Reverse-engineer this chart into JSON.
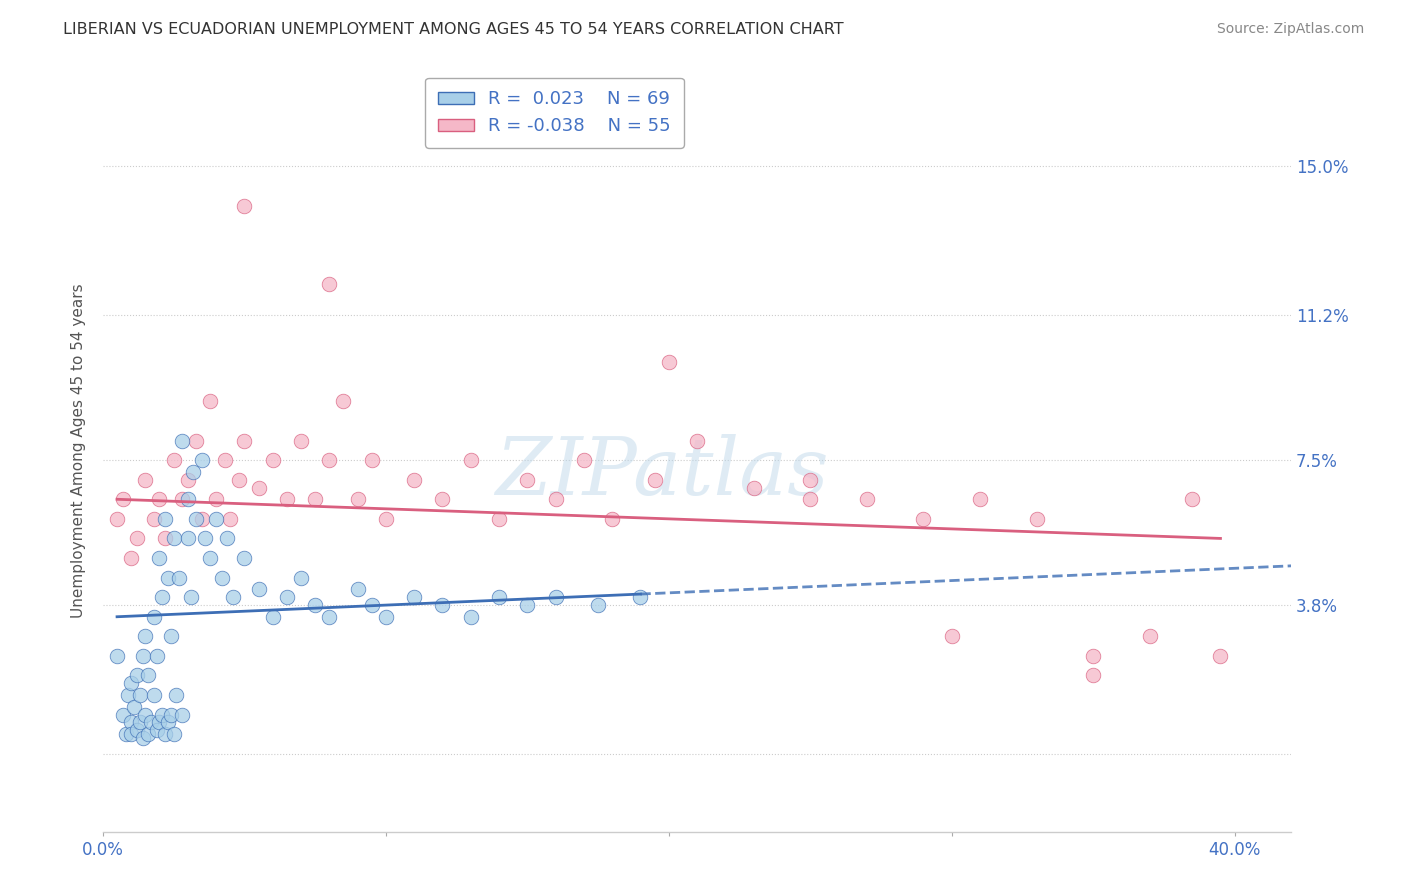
{
  "title": "LIBERIAN VS ECUADORIAN UNEMPLOYMENT AMONG AGES 45 TO 54 YEARS CORRELATION CHART",
  "source": "Source: ZipAtlas.com",
  "ylabel": "Unemployment Among Ages 45 to 54 years",
  "xlim": [
    0.0,
    0.42
  ],
  "ylim": [
    -0.02,
    0.175
  ],
  "ytick_values": [
    0.0,
    0.038,
    0.075,
    0.112,
    0.15
  ],
  "ytick_labels": [
    "",
    "3.8%",
    "7.5%",
    "11.2%",
    "15.0%"
  ],
  "xtick_values": [
    0.0,
    0.1,
    0.2,
    0.3,
    0.4
  ],
  "xtick_labels": [
    "0.0%",
    "",
    "",
    "",
    "40.0%"
  ],
  "liberian_R": 0.023,
  "liberian_N": 69,
  "ecuadorian_R": -0.038,
  "ecuadorian_N": 55,
  "liberian_color": "#a8cfe8",
  "ecuadorian_color": "#f5b8c8",
  "liberian_line_color": "#3d6eb5",
  "ecuadorian_line_color": "#d95f7f",
  "watermark": "ZIPatlas",
  "liberian_x": [
    0.005,
    0.007,
    0.008,
    0.009,
    0.01,
    0.01,
    0.01,
    0.011,
    0.012,
    0.012,
    0.013,
    0.013,
    0.014,
    0.014,
    0.015,
    0.015,
    0.016,
    0.016,
    0.017,
    0.018,
    0.018,
    0.019,
    0.019,
    0.02,
    0.02,
    0.021,
    0.021,
    0.022,
    0.022,
    0.023,
    0.023,
    0.024,
    0.024,
    0.025,
    0.025,
    0.026,
    0.027,
    0.028,
    0.028,
    0.03,
    0.03,
    0.031,
    0.032,
    0.033,
    0.035,
    0.036,
    0.038,
    0.04,
    0.042,
    0.044,
    0.046,
    0.05,
    0.055,
    0.06,
    0.065,
    0.07,
    0.075,
    0.08,
    0.09,
    0.095,
    0.1,
    0.11,
    0.12,
    0.13,
    0.14,
    0.15,
    0.16,
    0.175,
    0.19
  ],
  "liberian_y": [
    0.025,
    0.01,
    0.005,
    0.015,
    0.008,
    0.018,
    0.005,
    0.012,
    0.006,
    0.02,
    0.008,
    0.015,
    0.004,
    0.025,
    0.01,
    0.03,
    0.005,
    0.02,
    0.008,
    0.015,
    0.035,
    0.006,
    0.025,
    0.008,
    0.05,
    0.01,
    0.04,
    0.005,
    0.06,
    0.008,
    0.045,
    0.01,
    0.03,
    0.005,
    0.055,
    0.015,
    0.045,
    0.01,
    0.08,
    0.055,
    0.065,
    0.04,
    0.072,
    0.06,
    0.075,
    0.055,
    0.05,
    0.06,
    0.045,
    0.055,
    0.04,
    0.05,
    0.042,
    0.035,
    0.04,
    0.045,
    0.038,
    0.035,
    0.042,
    0.038,
    0.035,
    0.04,
    0.038,
    0.035,
    0.04,
    0.038,
    0.04,
    0.038,
    0.04
  ],
  "ecuadorian_x": [
    0.005,
    0.007,
    0.01,
    0.012,
    0.015,
    0.018,
    0.02,
    0.022,
    0.025,
    0.028,
    0.03,
    0.033,
    0.035,
    0.038,
    0.04,
    0.043,
    0.045,
    0.048,
    0.05,
    0.055,
    0.06,
    0.065,
    0.07,
    0.075,
    0.08,
    0.085,
    0.09,
    0.095,
    0.1,
    0.11,
    0.12,
    0.13,
    0.14,
    0.15,
    0.16,
    0.17,
    0.18,
    0.195,
    0.21,
    0.23,
    0.25,
    0.27,
    0.29,
    0.31,
    0.33,
    0.35,
    0.37,
    0.385,
    0.395,
    0.05,
    0.08,
    0.2,
    0.25,
    0.3,
    0.35
  ],
  "ecuadorian_y": [
    0.06,
    0.065,
    0.05,
    0.055,
    0.07,
    0.06,
    0.065,
    0.055,
    0.075,
    0.065,
    0.07,
    0.08,
    0.06,
    0.09,
    0.065,
    0.075,
    0.06,
    0.07,
    0.08,
    0.068,
    0.075,
    0.065,
    0.08,
    0.065,
    0.075,
    0.09,
    0.065,
    0.075,
    0.06,
    0.07,
    0.065,
    0.075,
    0.06,
    0.07,
    0.065,
    0.075,
    0.06,
    0.07,
    0.08,
    0.068,
    0.07,
    0.065,
    0.06,
    0.065,
    0.06,
    0.025,
    0.03,
    0.065,
    0.025,
    0.14,
    0.12,
    0.1,
    0.065,
    0.03,
    0.02
  ],
  "lib_line_start_x": 0.005,
  "lib_line_end_solid_x": 0.19,
  "lib_line_end_x": 0.42,
  "lib_line_start_y": 0.035,
  "lib_line_end_y": 0.048,
  "ecu_line_start_x": 0.005,
  "ecu_line_end_x": 0.395,
  "ecu_line_start_y": 0.065,
  "ecu_line_end_y": 0.055
}
